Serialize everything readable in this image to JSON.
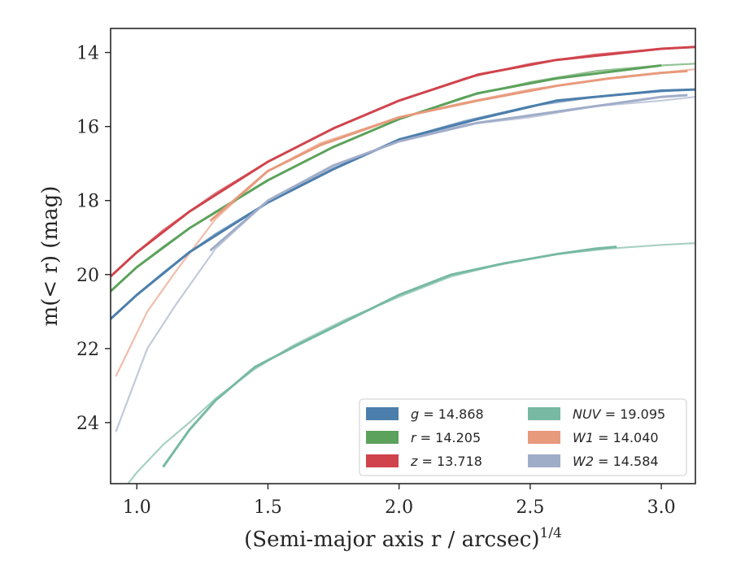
{
  "chart_data": {
    "type": "line",
    "title": "",
    "xlabel": "(Semi-major axis r / arcsec)",
    "xlabel_sup": "1/4",
    "ylabel": "m(< r) (mag)",
    "xlim": [
      0.9,
      3.13
    ],
    "ylim": [
      25.65,
      13.35
    ],
    "y_inverted": true,
    "grid": false,
    "legend_placement": "lower-right",
    "x_ticks": [
      {
        "value": 1.0,
        "label": "1.0"
      },
      {
        "value": 1.5,
        "label": "1.5"
      },
      {
        "value": 2.0,
        "label": "2.0"
      },
      {
        "value": 2.5,
        "label": "2.5"
      },
      {
        "value": 3.0,
        "label": "3.0"
      }
    ],
    "y_ticks": [
      {
        "value": 14,
        "label": "14"
      },
      {
        "value": 16,
        "label": "16"
      },
      {
        "value": 18,
        "label": "18"
      },
      {
        "value": 20,
        "label": "20"
      },
      {
        "value": 22,
        "label": "22"
      },
      {
        "value": 24,
        "label": "24"
      }
    ],
    "series": [
      {
        "band": "g",
        "value_text": "14.868",
        "color": "#4c7eac",
        "fit": [
          [
            0.9,
            21.2
          ],
          [
            1.0,
            20.55
          ],
          [
            1.1,
            19.95
          ],
          [
            1.2,
            19.4
          ],
          [
            1.3,
            18.9
          ],
          [
            1.5,
            18.05
          ],
          [
            1.75,
            17.15
          ],
          [
            2.0,
            16.35
          ],
          [
            2.25,
            15.85
          ],
          [
            2.5,
            15.45
          ],
          [
            2.75,
            15.2
          ],
          [
            3.0,
            15.05
          ],
          [
            3.13,
            15.0
          ]
        ],
        "measured": [
          [
            0.9,
            21.2
          ],
          [
            1.0,
            20.55
          ],
          [
            1.2,
            19.4
          ],
          [
            1.5,
            18.05
          ],
          [
            1.75,
            17.15
          ],
          [
            2.0,
            16.35
          ],
          [
            2.3,
            15.8
          ],
          [
            2.6,
            15.3
          ],
          [
            3.0,
            15.03
          ],
          [
            3.13,
            15.0
          ]
        ]
      },
      {
        "band": "r",
        "value_text": "14.205",
        "color": "#5ca25c",
        "fit": [
          [
            0.9,
            20.45
          ],
          [
            1.0,
            19.8
          ],
          [
            1.1,
            19.25
          ],
          [
            1.2,
            18.75
          ],
          [
            1.3,
            18.3
          ],
          [
            1.5,
            17.45
          ],
          [
            1.75,
            16.55
          ],
          [
            2.0,
            15.8
          ],
          [
            2.25,
            15.2
          ],
          [
            2.5,
            14.8
          ],
          [
            2.75,
            14.5
          ],
          [
            3.0,
            14.35
          ],
          [
            3.13,
            14.3
          ]
        ],
        "measured": [
          [
            0.9,
            20.45
          ],
          [
            1.0,
            19.8
          ],
          [
            1.2,
            18.75
          ],
          [
            1.5,
            17.45
          ],
          [
            1.75,
            16.55
          ],
          [
            2.0,
            15.8
          ],
          [
            2.3,
            15.1
          ],
          [
            2.6,
            14.7
          ],
          [
            3.0,
            14.35
          ]
        ]
      },
      {
        "band": "z",
        "value_text": "13.718",
        "color": "#d0434c",
        "fit": [
          [
            0.9,
            20.05
          ],
          [
            1.0,
            19.4
          ],
          [
            1.1,
            18.8
          ],
          [
            1.2,
            18.3
          ],
          [
            1.3,
            17.8
          ],
          [
            1.5,
            16.95
          ],
          [
            1.75,
            16.05
          ],
          [
            2.0,
            15.3
          ],
          [
            2.25,
            14.7
          ],
          [
            2.5,
            14.3
          ],
          [
            2.75,
            14.05
          ],
          [
            3.0,
            13.9
          ],
          [
            3.13,
            13.85
          ]
        ],
        "measured": [
          [
            0.9,
            20.05
          ],
          [
            1.0,
            19.4
          ],
          [
            1.2,
            18.3
          ],
          [
            1.5,
            16.95
          ],
          [
            1.75,
            16.05
          ],
          [
            2.0,
            15.3
          ],
          [
            2.3,
            14.6
          ],
          [
            2.6,
            14.2
          ],
          [
            3.0,
            13.9
          ],
          [
            3.13,
            13.85
          ]
        ]
      },
      {
        "band": "NUV",
        "value_text": "19.095",
        "color": "#77b9a2",
        "fit": [
          [
            0.95,
            25.8
          ],
          [
            1.0,
            25.35
          ],
          [
            1.1,
            24.6
          ],
          [
            1.2,
            24.0
          ],
          [
            1.3,
            23.35
          ],
          [
            1.45,
            22.55
          ],
          [
            1.6,
            21.9
          ],
          [
            1.8,
            21.2
          ],
          [
            2.0,
            20.6
          ],
          [
            2.2,
            20.05
          ],
          [
            2.4,
            19.7
          ],
          [
            2.6,
            19.45
          ],
          [
            2.8,
            19.3
          ],
          [
            3.0,
            19.2
          ],
          [
            3.13,
            19.15
          ]
        ],
        "measured": [
          [
            1.1,
            25.2
          ],
          [
            1.2,
            24.2
          ],
          [
            1.3,
            23.4
          ],
          [
            1.45,
            22.5
          ],
          [
            1.6,
            21.95
          ],
          [
            1.8,
            21.25
          ],
          [
            2.0,
            20.55
          ],
          [
            2.2,
            20.0
          ],
          [
            2.4,
            19.7
          ],
          [
            2.6,
            19.45
          ],
          [
            2.75,
            19.3
          ],
          [
            2.83,
            19.25
          ]
        ]
      },
      {
        "band": "W1",
        "value_text": "14.040",
        "color": "#e89a7c",
        "fit": [
          [
            0.92,
            22.75
          ],
          [
            1.04,
            21.0
          ],
          [
            1.15,
            19.9
          ],
          [
            1.3,
            18.5
          ],
          [
            1.5,
            17.2
          ],
          [
            1.7,
            16.45
          ],
          [
            2.0,
            15.75
          ],
          [
            2.25,
            15.35
          ],
          [
            2.5,
            15.0
          ],
          [
            2.75,
            14.75
          ],
          [
            3.0,
            14.55
          ],
          [
            3.13,
            14.45
          ]
        ],
        "measured": [
          [
            1.28,
            18.55
          ],
          [
            1.5,
            17.2
          ],
          [
            1.7,
            16.5
          ],
          [
            2.0,
            15.75
          ],
          [
            2.3,
            15.3
          ],
          [
            2.6,
            14.9
          ],
          [
            2.8,
            14.7
          ],
          [
            3.0,
            14.55
          ],
          [
            3.1,
            14.5
          ]
        ]
      },
      {
        "band": "W2",
        "value_text": "14.584",
        "color": "#a0adc9",
        "fit": [
          [
            0.92,
            24.25
          ],
          [
            1.04,
            22.0
          ],
          [
            1.15,
            20.8
          ],
          [
            1.3,
            19.3
          ],
          [
            1.5,
            18.0
          ],
          [
            1.75,
            17.1
          ],
          [
            2.0,
            16.4
          ],
          [
            2.25,
            15.95
          ],
          [
            2.5,
            15.75
          ],
          [
            2.75,
            15.45
          ],
          [
            3.0,
            15.3
          ],
          [
            3.13,
            15.2
          ]
        ],
        "measured": [
          [
            1.28,
            19.35
          ],
          [
            1.5,
            18.0
          ],
          [
            1.75,
            17.05
          ],
          [
            2.0,
            16.4
          ],
          [
            2.3,
            15.9
          ],
          [
            2.6,
            15.6
          ],
          [
            2.8,
            15.4
          ],
          [
            3.0,
            15.2
          ],
          [
            3.1,
            15.15
          ]
        ]
      }
    ]
  }
}
